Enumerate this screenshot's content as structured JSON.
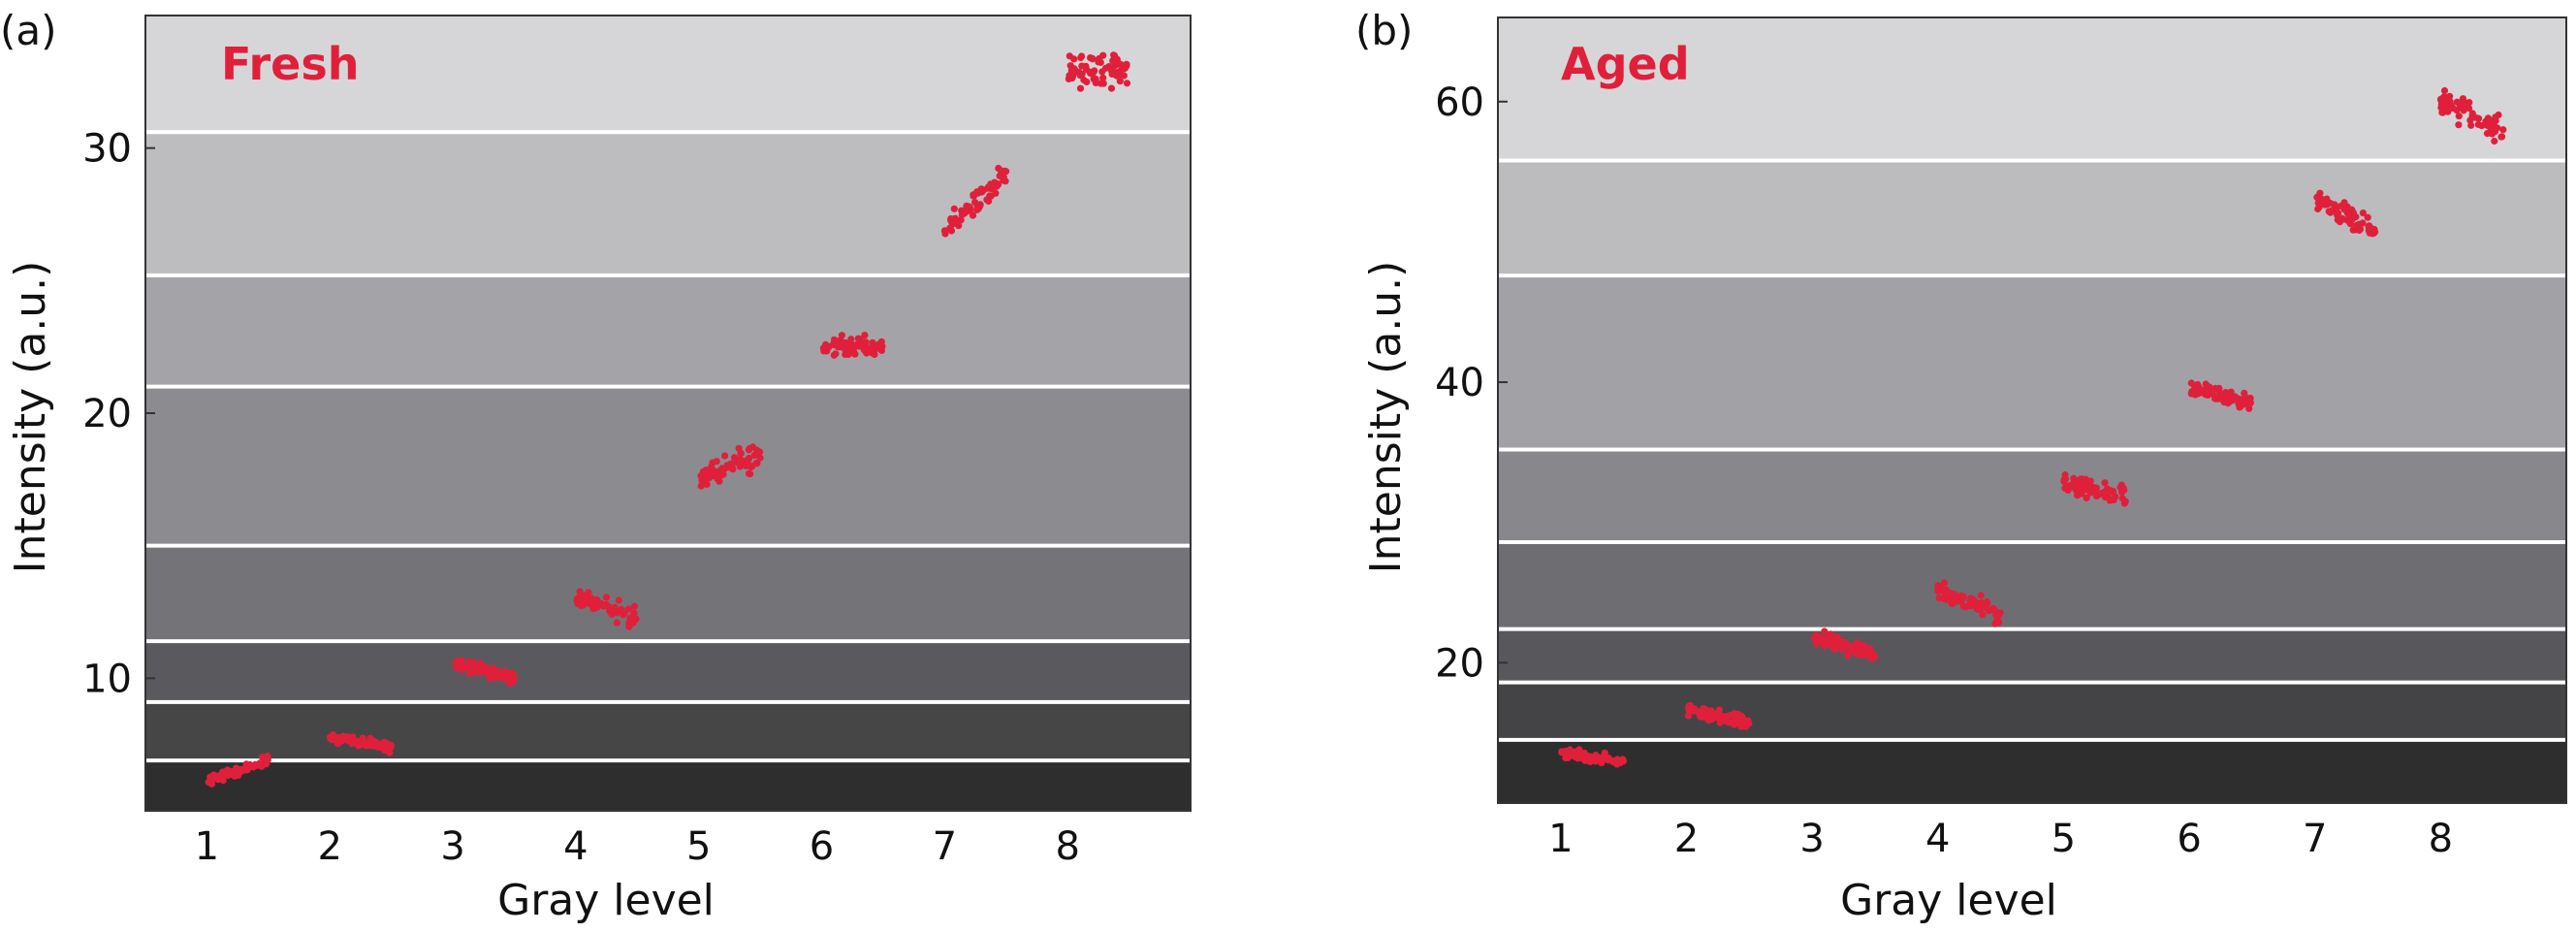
{
  "accent_color": "#e0203a",
  "chart_data": [
    {
      "type": "scatter",
      "panel_label": "(a)",
      "title": "Fresh",
      "xlabel": "Gray level",
      "ylabel": "Intensity (a.u.)",
      "xlim": [
        0.5,
        9.0
      ],
      "ylim": [
        5.0,
        35.0
      ],
      "x_ticks": [
        1,
        2,
        3,
        4,
        5,
        6,
        7,
        8
      ],
      "y_ticks": [
        10,
        20,
        30
      ],
      "background_bands": {
        "boundaries": [
          5.0,
          6.9,
          9.1,
          11.4,
          15.0,
          21.0,
          25.2,
          30.6,
          35.0
        ],
        "colors": [
          "#2e2e2e",
          "#464646",
          "#5a5a5e",
          "#747478",
          "#8c8c90",
          "#a4a4a8",
          "#bdbdc0",
          "#d6d6d8"
        ]
      },
      "series": [
        {
          "x_start": 1.0,
          "x_end": 1.5,
          "y_start": 6.1,
          "y_end": 6.9,
          "spread": 0.25
        },
        {
          "x_start": 2.0,
          "x_end": 2.5,
          "y_start": 7.8,
          "y_end": 7.4,
          "spread": 0.25
        },
        {
          "x_start": 3.0,
          "x_end": 3.5,
          "y_start": 10.6,
          "y_end": 10.0,
          "spread": 0.35
        },
        {
          "x_start": 4.0,
          "x_end": 4.5,
          "y_start": 13.0,
          "y_end": 12.3,
          "spread": 0.55
        },
        {
          "x_start": 5.0,
          "x_end": 5.5,
          "y_start": 17.6,
          "y_end": 18.4,
          "spread": 0.7
        },
        {
          "x_start": 6.0,
          "x_end": 6.5,
          "y_start": 22.5,
          "y_end": 22.6,
          "spread": 0.6
        },
        {
          "x_start": 7.0,
          "x_end": 7.5,
          "y_start": 26.9,
          "y_end": 29.0,
          "spread": 0.6
        },
        {
          "x_start": 8.0,
          "x_end": 8.5,
          "y_start": 33.0,
          "y_end": 33.0,
          "spread": 1.1
        }
      ]
    },
    {
      "type": "scatter",
      "panel_label": "(b)",
      "title": "Aged",
      "xlabel": "Gray level",
      "ylabel": "Intensity (a.u.)",
      "xlim": [
        0.5,
        9.0
      ],
      "ylim": [
        10.0,
        66.0
      ],
      "x_ticks": [
        1,
        2,
        3,
        4,
        5,
        6,
        7,
        8
      ],
      "y_ticks": [
        20,
        40,
        60
      ],
      "background_bands": {
        "boundaries": [
          10.0,
          14.5,
          18.6,
          22.4,
          28.6,
          35.2,
          47.6,
          55.8,
          66.0
        ],
        "colors": [
          "#2e2e2e",
          "#444446",
          "#58585c",
          "#6e6e72",
          "#88888c",
          "#a2a2a6",
          "#bcbcbf",
          "#d6d6d8"
        ]
      },
      "series": [
        {
          "x_start": 1.0,
          "x_end": 1.5,
          "y_start": 13.6,
          "y_end": 13.0,
          "spread": 0.5
        },
        {
          "x_start": 2.0,
          "x_end": 2.5,
          "y_start": 16.6,
          "y_end": 15.8,
          "spread": 0.6
        },
        {
          "x_start": 3.0,
          "x_end": 3.5,
          "y_start": 21.8,
          "y_end": 20.6,
          "spread": 0.8
        },
        {
          "x_start": 4.0,
          "x_end": 4.5,
          "y_start": 25.2,
          "y_end": 23.5,
          "spread": 0.9
        },
        {
          "x_start": 5.0,
          "x_end": 5.5,
          "y_start": 32.8,
          "y_end": 31.8,
          "spread": 0.9
        },
        {
          "x_start": 6.0,
          "x_end": 6.5,
          "y_start": 39.6,
          "y_end": 38.5,
          "spread": 0.8
        },
        {
          "x_start": 7.0,
          "x_end": 7.5,
          "y_start": 53.0,
          "y_end": 50.8,
          "spread": 1.0
        },
        {
          "x_start": 8.0,
          "x_end": 8.5,
          "y_start": 60.0,
          "y_end": 58.0,
          "spread": 1.4
        }
      ]
    }
  ]
}
